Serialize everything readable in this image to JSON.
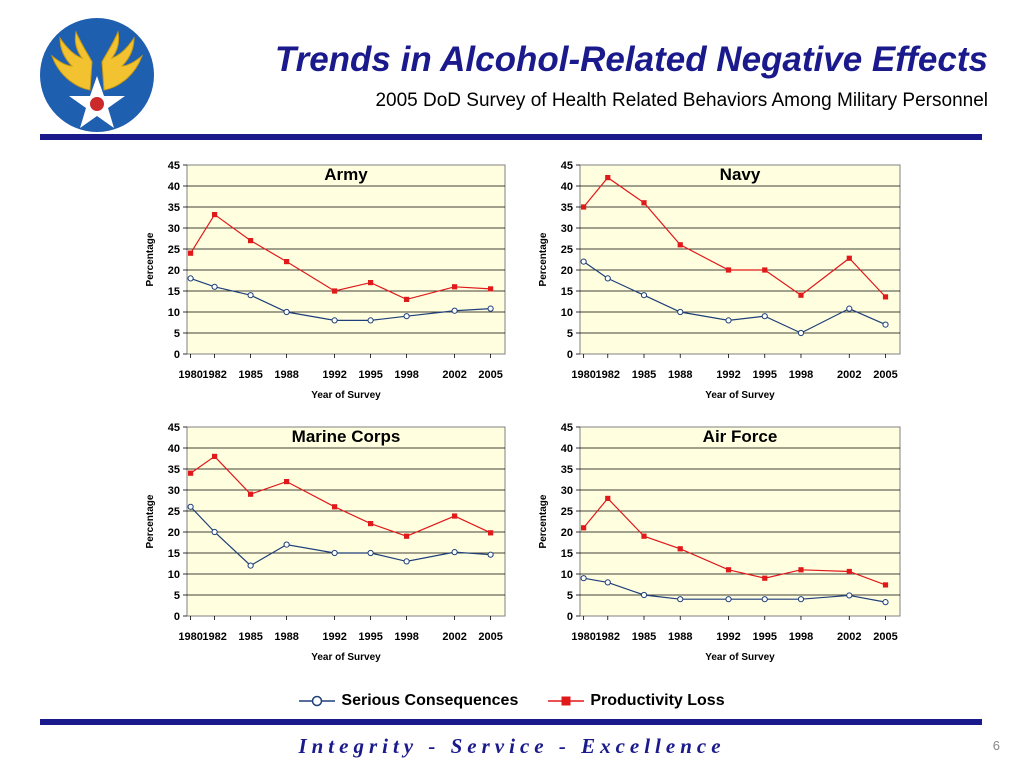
{
  "header": {
    "title": "Trends in Alcohol-Related Negative Effects",
    "subtitle": "2005 DoD Survey of Health Related Behaviors Among Military Personnel"
  },
  "logo": {
    "icon": "air-force-wings-star-logo",
    "colors": {
      "circle": "#1f5fb0",
      "wings": "#f2c230",
      "star": "#ffffff",
      "center": "#cc2a2a"
    }
  },
  "legend": {
    "serious_label": "Serious Consequences",
    "productivity_label": "Productivity Loss"
  },
  "colors": {
    "serious": "#1f3f7a",
    "productivity": "#e0191b",
    "plot_bg": "#ffffe0"
  },
  "chart_data": [
    {
      "type": "line",
      "title": "Army",
      "xlabel": "Year of Survey",
      "ylabel": "Percentage",
      "x": [
        1980,
        1982,
        1985,
        1988,
        1992,
        1995,
        1998,
        2002,
        2005
      ],
      "x_tick_labels": [
        "1980",
        "1982",
        "1985",
        "1988",
        "1992",
        "1995",
        "1998",
        "2002",
        "2005"
      ],
      "ylim": [
        0,
        45
      ],
      "y_ticks": [
        0,
        5,
        10,
        15,
        20,
        25,
        30,
        35,
        40,
        45
      ],
      "grid": true,
      "series": [
        {
          "name": "Serious Consequences",
          "values": [
            18,
            16,
            14,
            10,
            8,
            8,
            9,
            10.3,
            10.8
          ]
        },
        {
          "name": "Productivity Loss",
          "values": [
            24,
            33.2,
            27,
            22,
            15,
            17,
            13,
            16,
            15.5
          ]
        }
      ]
    },
    {
      "type": "line",
      "title": "Navy",
      "xlabel": "Year of Survey",
      "ylabel": "Percentage",
      "x": [
        1980,
        1982,
        1985,
        1988,
        1992,
        1995,
        1998,
        2002,
        2005
      ],
      "x_tick_labels": [
        "1980",
        "1982",
        "1985",
        "1988",
        "1992",
        "1995",
        "1998",
        "2002",
        "2005"
      ],
      "ylim": [
        0,
        45
      ],
      "y_ticks": [
        0,
        5,
        10,
        15,
        20,
        25,
        30,
        35,
        40,
        45
      ],
      "grid": true,
      "series": [
        {
          "name": "Serious Consequences",
          "values": [
            22,
            18,
            14,
            10,
            8,
            9,
            5,
            10.8,
            7
          ]
        },
        {
          "name": "Productivity Loss",
          "values": [
            35,
            42,
            36,
            26,
            20,
            20,
            14,
            22.8,
            13.6
          ]
        }
      ]
    },
    {
      "type": "line",
      "title": "Marine Corps",
      "xlabel": "Year of Survey",
      "ylabel": "Percentage",
      "x": [
        1980,
        1982,
        1985,
        1988,
        1992,
        1995,
        1998,
        2002,
        2005
      ],
      "x_tick_labels": [
        "1980",
        "1982",
        "1985",
        "1988",
        "1992",
        "1995",
        "1998",
        "2002",
        "2005"
      ],
      "ylim": [
        0,
        45
      ],
      "y_ticks": [
        0,
        5,
        10,
        15,
        20,
        25,
        30,
        35,
        40,
        45
      ],
      "grid": true,
      "series": [
        {
          "name": "Serious Consequences",
          "values": [
            26,
            20,
            12,
            17,
            15,
            15,
            13,
            15.2,
            14.6
          ]
        },
        {
          "name": "Productivity Loss",
          "values": [
            34,
            38,
            29,
            32,
            26,
            22,
            19,
            23.8,
            19.8
          ]
        }
      ]
    },
    {
      "type": "line",
      "title": "Air Force",
      "xlabel": "Year of Survey",
      "ylabel": "Percentage",
      "x": [
        1980,
        1982,
        1985,
        1988,
        1992,
        1995,
        1998,
        2002,
        2005
      ],
      "x_tick_labels": [
        "1980",
        "1982",
        "1985",
        "1988",
        "1992",
        "1995",
        "1998",
        "2002",
        "2005"
      ],
      "ylim": [
        0,
        45
      ],
      "y_ticks": [
        0,
        5,
        10,
        15,
        20,
        25,
        30,
        35,
        40,
        45
      ],
      "grid": true,
      "series": [
        {
          "name": "Serious Consequences",
          "values": [
            9,
            8,
            5,
            4,
            4,
            4,
            4,
            4.9,
            3.3
          ]
        },
        {
          "name": "Productivity Loss",
          "values": [
            21,
            28,
            19,
            16,
            11,
            9,
            11,
            10.6,
            7.4
          ]
        }
      ]
    }
  ],
  "footer": {
    "motto": "Integrity - Service - Excellence",
    "page_number": "6"
  }
}
